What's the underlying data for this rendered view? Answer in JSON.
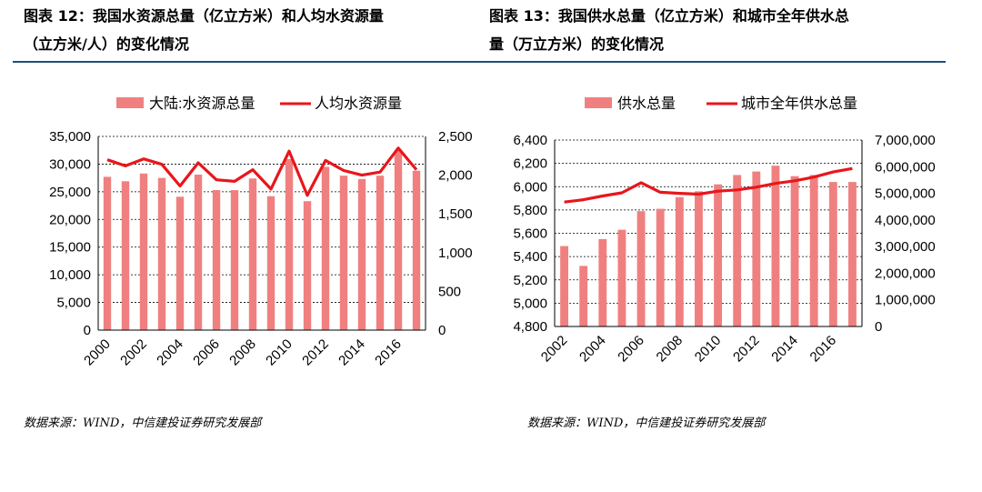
{
  "colors": {
    "bar": "#f08080",
    "line": "#e8161b",
    "rule": "#1f4e79",
    "grid": "#000000"
  },
  "left": {
    "caption_line1": "图表 12：我国水资源总量（亿立方米）和人均水资源量",
    "caption_line2": "（立方米/人）的变化情况",
    "source": "数据来源：WIND，中信建投证券研究发展部"
  },
  "right": {
    "caption_line1": "图表 13：我国供水总量（亿立方米）和城市全年供水总",
    "caption_line2": "量（万立方米）的变化情况",
    "source": "数据来源：WIND，中信建投证券研究发展部"
  },
  "chart_data": [
    {
      "type": "bar",
      "x": [
        2000,
        2001,
        2002,
        2003,
        2004,
        2005,
        2006,
        2007,
        2008,
        2009,
        2010,
        2011,
        2012,
        2013,
        2014,
        2015,
        2016,
        2017
      ],
      "x_tick_labels": [
        "2000",
        "2002",
        "2004",
        "2006",
        "2008",
        "2010",
        "2012",
        "2014",
        "2016"
      ],
      "series": [
        {
          "name": "大陆:水资源总量",
          "kind": "bar",
          "axis": "left",
          "values": [
            27700,
            26900,
            28300,
            27500,
            24100,
            28100,
            25300,
            25300,
            27400,
            24200,
            30900,
            23300,
            29500,
            27900,
            27300,
            27900,
            32500,
            28800
          ]
        },
        {
          "name": "人均水资源量",
          "kind": "line",
          "axis": "right",
          "values": [
            2200,
            2120,
            2210,
            2140,
            1860,
            2160,
            1940,
            1920,
            2070,
            1820,
            2310,
            1740,
            2190,
            2060,
            2000,
            2040,
            2350,
            2070
          ]
        }
      ],
      "y_left": {
        "min": 0,
        "max": 35000,
        "ticks": [
          "0",
          "5,000",
          "10,000",
          "15,000",
          "20,000",
          "25,000",
          "30,000",
          "35,000"
        ]
      },
      "y_right": {
        "min": 0,
        "max": 2500,
        "ticks": [
          "0",
          "500",
          "1,000",
          "1,500",
          "2,000",
          "2,500"
        ]
      },
      "grid": "dashed horizontal",
      "legend": "top"
    },
    {
      "type": "bar",
      "x": [
        2002,
        2003,
        2004,
        2005,
        2006,
        2007,
        2008,
        2009,
        2010,
        2011,
        2012,
        2013,
        2014,
        2015,
        2016,
        2017
      ],
      "x_tick_labels": [
        "2002",
        "2004",
        "2006",
        "2008",
        "2010",
        "2012",
        "2014",
        "2016"
      ],
      "series": [
        {
          "name": "供水总量",
          "kind": "bar",
          "axis": "left",
          "values": [
            5490,
            5320,
            5550,
            5630,
            5790,
            5810,
            5910,
            5960,
            6020,
            6100,
            6130,
            6180,
            6090,
            6100,
            6040,
            6040
          ]
        },
        {
          "name": "城市全年供水总量",
          "kind": "line",
          "axis": "right",
          "values": [
            4670000,
            4760000,
            4900000,
            5020000,
            5400000,
            5040000,
            5000000,
            4970000,
            5080000,
            5130000,
            5230000,
            5370000,
            5470000,
            5610000,
            5800000,
            5930000
          ]
        }
      ],
      "y_left": {
        "min": 4800,
        "max": 6400,
        "ticks": [
          "4,800",
          "5,000",
          "5,200",
          "5,400",
          "5,600",
          "5,800",
          "6,000",
          "6,200",
          "6,400"
        ]
      },
      "y_right": {
        "min": 0,
        "max": 7000000,
        "ticks": [
          "0",
          "1,000,000",
          "2,000,000",
          "3,000,000",
          "4,000,000",
          "5,000,000",
          "6,000,000",
          "7,000,000"
        ]
      },
      "grid": "dashed horizontal",
      "legend": "top"
    }
  ]
}
